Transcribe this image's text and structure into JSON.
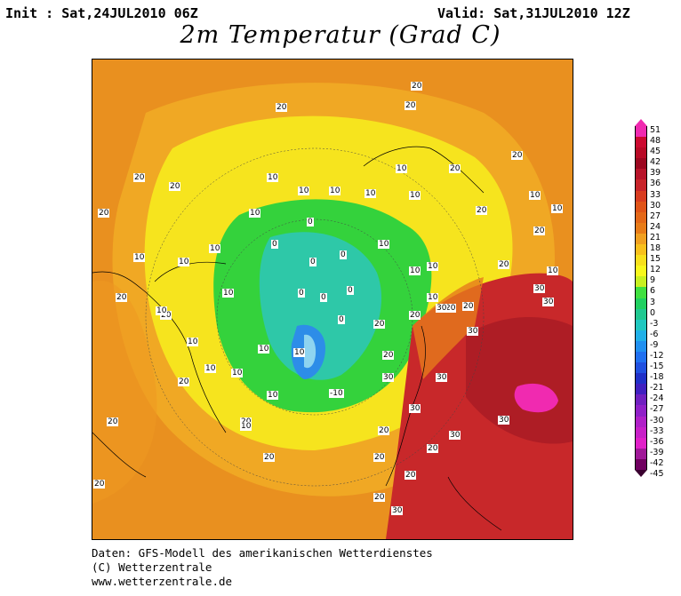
{
  "header": {
    "init": "Init : Sat,24JUL2010 06Z",
    "valid": "Valid: Sat,31JUL2010 12Z",
    "title": "2m Temperatur (Grad C)"
  },
  "footer": {
    "line1": "Daten: GFS-Modell des amerikanischen Wetterdienstes",
    "line2": "(C) Wetterzentrale",
    "line3": "www.wetterzentrale.de"
  },
  "colorbar": {
    "ticks": [
      "51",
      "48",
      "45",
      "42",
      "39",
      "36",
      "33",
      "30",
      "27",
      "24",
      "21",
      "18",
      "15",
      "12",
      "9",
      "6",
      "3",
      "0",
      "-3",
      "-6",
      "-9",
      "-12",
      "-15",
      "-18",
      "-21",
      "-24",
      "-27",
      "-30",
      "-33",
      "-36",
      "-39",
      "-42",
      "-45"
    ],
    "colors": [
      "#f02ab0",
      "#cc0a30",
      "#b80a26",
      "#9c0820",
      "#b8142a",
      "#c8242a",
      "#d83c20",
      "#e05418",
      "#e46818",
      "#e87c18",
      "#f0a020",
      "#f8c01c",
      "#f8e01c",
      "#f8f81c",
      "#c8f020",
      "#40e040",
      "#20d060",
      "#20c890",
      "#20c8c0",
      "#20b0e8",
      "#2090f0",
      "#2070f0",
      "#2050e0",
      "#2030c8",
      "#4020c0",
      "#7020c0",
      "#9020c8",
      "#b020c8",
      "#c820c8",
      "#e020c8",
      "#a01898",
      "#700060"
    ]
  },
  "map_labels": [
    "20",
    "20",
    "20",
    "20",
    "20",
    "20",
    "20",
    "20",
    "20",
    "20",
    "20",
    "20",
    "20",
    "20",
    "20",
    "20",
    "20",
    "20",
    "20",
    "20",
    "20",
    "20",
    "20",
    "20",
    "20",
    "20",
    "20",
    "20",
    "10",
    "10",
    "10",
    "10",
    "10",
    "10",
    "10",
    "10",
    "10",
    "10",
    "10",
    "10",
    "10",
    "10",
    "10",
    "10",
    "10",
    "10",
    "10",
    "10",
    "10",
    "10",
    "10",
    "10",
    "10",
    "10",
    "0",
    "0",
    "0",
    "0",
    "0",
    "0",
    "0",
    "0",
    "-10",
    "30",
    "30",
    "30",
    "30",
    "30",
    "30",
    "30",
    "30",
    "30",
    "30"
  ],
  "colors": {
    "orange": "#e68a1e",
    "yellow": "#f6e41e",
    "green": "#34d23c",
    "cyan": "#2ec8a8",
    "blue": "#2d8de8",
    "red": "#c8282a",
    "magenta": "#f02ab0"
  }
}
